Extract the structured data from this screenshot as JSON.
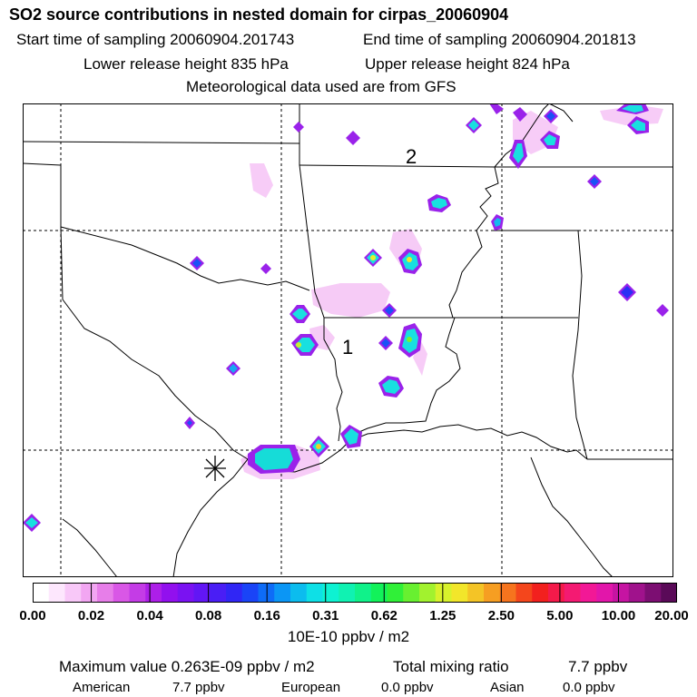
{
  "title": "SO2 source contributions in nested domain for cirpas_20060904",
  "header": {
    "start_label": "Start time of sampling 20060904.201743",
    "end_label": "End time of sampling 20060904.201813",
    "lower_label": "Lower release height  835 hPa",
    "upper_label": "Upper release height  824 hPa",
    "met_label": "Meteorological data used are from GFS"
  },
  "map": {
    "region_labels": [
      "1",
      "2"
    ],
    "marker": "source-star"
  },
  "legend": {
    "tick_labels": [
      "0.00",
      "0.02",
      "0.04",
      "0.08",
      "0.16",
      "0.31",
      "0.62",
      "1.25",
      "2.50",
      "5.00",
      "10.00",
      "20.00"
    ],
    "colors": [
      "#ffffff",
      "#fde7fd",
      "#f8c8f8",
      "#f2a6f2",
      "#e77ee9",
      "#d957e6",
      "#c43ce6",
      "#ad1fe8",
      "#9210ee",
      "#7a12f2",
      "#6216f5",
      "#4a1ef5",
      "#3026f5",
      "#1a44f7",
      "#0e6cf7",
      "#0b96f5",
      "#0cbcee",
      "#0ee0e6",
      "#0ef2d2",
      "#10f2b2",
      "#10f28a",
      "#12f25a",
      "#30f038",
      "#68f030",
      "#a2f22e",
      "#d8f22c",
      "#f2e62a",
      "#f4c426",
      "#f69e22",
      "#f6741e",
      "#f4461c",
      "#f2201e",
      "#f41a4a",
      "#f41a72",
      "#f21896",
      "#e216aa",
      "#c614a2",
      "#a0128c",
      "#7c0e72",
      "#5a0a58"
    ],
    "units": "10E-10 ppbv / m2"
  },
  "footer": {
    "max_label": "Maximum value  0.263E-09 ppbv / m2",
    "total_label": "Total mixing ratio",
    "total_value": "7.7 ppbv",
    "american_label": "American",
    "american_value": "7.7 ppbv",
    "european_label": "European",
    "european_value": "0.0 ppbv",
    "asian_label": "Asian",
    "asian_value": "0.0 ppbv"
  }
}
